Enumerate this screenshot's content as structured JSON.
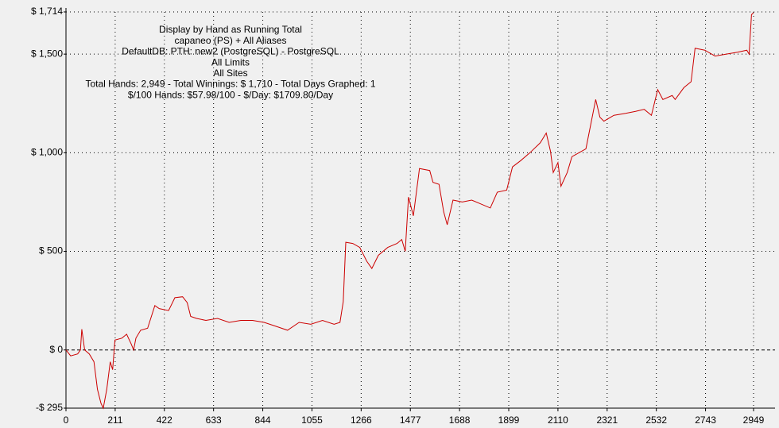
{
  "chart_data": {
    "type": "line",
    "title_lines": [
      "Display by Hand as Running Total",
      "capaneo (PS) + All Aliases",
      "DefaultDB: PTH: new2 (PostgreSQL) - PostgreSQL",
      "All Limits",
      "All Sites",
      "Total Hands: 2,949 - Total Winnings: $ 1,710 - Total Days Graphed: 1",
      "$/100 Hands: $57.98/100 - $/Day: $1709.80/Day"
    ],
    "x": [
      0,
      20,
      50,
      62,
      68,
      80,
      100,
      120,
      135,
      150,
      160,
      175,
      190,
      200,
      210,
      240,
      260,
      280,
      290,
      300,
      320,
      350,
      381,
      400,
      440,
      467,
      500,
      520,
      535,
      560,
      600,
      650,
      700,
      750,
      800,
      850,
      900,
      950,
      1000,
      1050,
      1100,
      1150,
      1175,
      1189,
      1200,
      1230,
      1260,
      1290,
      1312,
      1340,
      1380,
      1420,
      1440,
      1455,
      1469,
      1490,
      1516,
      1560,
      1574,
      1600,
      1620,
      1635,
      1660,
      1700,
      1740,
      1780,
      1820,
      1850,
      1890,
      1915,
      1950,
      1990,
      2034,
      2060,
      2078,
      2090,
      2110,
      2123,
      2150,
      2170,
      2230,
      2272,
      2290,
      2307,
      2350,
      2400,
      2443,
      2480,
      2511,
      2538,
      2560,
      2600,
      2613,
      2650,
      2681,
      2698,
      2740,
      2784,
      2830,
      2880,
      2920,
      2930,
      2940,
      2949
    ],
    "values": [
      0,
      -30,
      -20,
      0,
      105,
      0,
      -20,
      -60,
      -200,
      -270,
      -295,
      -200,
      -60,
      -100,
      50,
      60,
      80,
      30,
      0,
      60,
      100,
      110,
      225,
      210,
      200,
      265,
      270,
      240,
      170,
      160,
      150,
      160,
      140,
      150,
      150,
      140,
      120,
      100,
      140,
      130,
      150,
      130,
      140,
      245,
      546,
      540,
      520,
      450,
      413,
      480,
      520,
      540,
      560,
      500,
      775,
      680,
      920,
      910,
      850,
      840,
      700,
      635,
      760,
      750,
      760,
      740,
      720,
      800,
      810,
      928,
      960,
      1000,
      1050,
      1100,
      1008,
      900,
      950,
      830,
      900,
      980,
      1020,
      1270,
      1180,
      1160,
      1190,
      1200,
      1210,
      1220,
      1190,
      1320,
      1270,
      1290,
      1270,
      1330,
      1360,
      1530,
      1520,
      1490,
      1500,
      1510,
      1520,
      1500,
      1700,
      1710
    ],
    "color": "#cc0000",
    "xlim": [
      0,
      2949
    ],
    "ylim": [
      -295,
      1714
    ],
    "xticks": [
      0,
      211,
      422,
      633,
      844,
      1055,
      1266,
      1477,
      1688,
      1899,
      2110,
      2321,
      2532,
      2743,
      2949
    ],
    "yticks": [
      {
        "value": -295,
        "label": "-$ 295"
      },
      {
        "value": 0,
        "label": "$ 0"
      },
      {
        "value": 500,
        "label": "$ 500"
      },
      {
        "value": 1000,
        "label": "$ 1,000"
      },
      {
        "value": 1500,
        "label": "$ 1,500"
      },
      {
        "value": 1714,
        "label": "$ 1,714"
      }
    ],
    "grid": true
  }
}
